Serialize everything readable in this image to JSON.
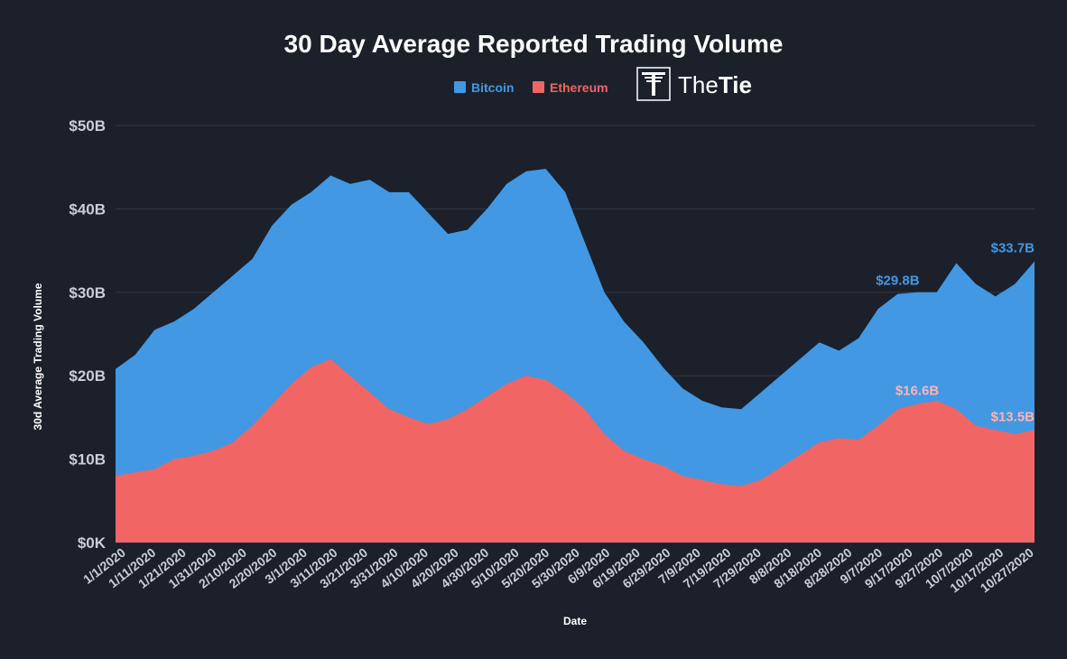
{
  "chart_data": {
    "type": "area",
    "stacked": false,
    "title": "30 Day Average Reported Trading Volume",
    "xlabel": "Date",
    "ylabel": "30d Average Trading Volume",
    "ylim": [
      0,
      50
    ],
    "y_ticks": [
      {
        "value": 0,
        "label": "$0K"
      },
      {
        "value": 10,
        "label": "$10B"
      },
      {
        "value": 20,
        "label": "$20B"
      },
      {
        "value": 30,
        "label": "$30B"
      },
      {
        "value": 40,
        "label": "$40B"
      },
      {
        "value": 50,
        "label": "$50B"
      }
    ],
    "x_tick_labels": [
      "1/1/2020",
      "1/11/2020",
      "1/21/2020",
      "1/31/2020",
      "2/10/2020",
      "2/20/2020",
      "3/1/2020",
      "3/11/2020",
      "3/21/2020",
      "3/31/2020",
      "4/10/2020",
      "4/20/2020",
      "4/30/2020",
      "5/10/2020",
      "5/20/2020",
      "5/30/2020",
      "6/9/2020",
      "6/19/2020",
      "6/29/2020",
      "7/9/2020",
      "7/19/2020",
      "7/29/2020",
      "8/8/2020",
      "8/18/2020",
      "8/28/2020",
      "9/7/2020",
      "9/17/2020",
      "9/27/2020",
      "10/7/2020",
      "10/17/2020",
      "10/27/2020"
    ],
    "legend_position": "top-center",
    "grid": true,
    "series": [
      {
        "name": "Bitcoin",
        "color": "#4298e2",
        "values": [
          20.8,
          22.5,
          25.5,
          26.5,
          28.0,
          30.0,
          32.0,
          34.0,
          38.0,
          40.5,
          42.0,
          44.0,
          43.0,
          43.5,
          42.0,
          42.0,
          39.5,
          37.0,
          37.5,
          40.0,
          43.0,
          44.5,
          44.8,
          42.0,
          36.0,
          30.0,
          26.5,
          24.0,
          21.0,
          18.5,
          17.0,
          16.2,
          16.0,
          18.0,
          20.0,
          22.0,
          24.0,
          23.0,
          24.5,
          28.0,
          29.8,
          30.0,
          30.0,
          33.5,
          31.0,
          29.5,
          31.0,
          33.7
        ]
      },
      {
        "name": "Ethereum",
        "color": "#f26565",
        "values": [
          8.0,
          8.4,
          8.8,
          10.0,
          10.4,
          11.0,
          12.0,
          14.0,
          16.5,
          19.0,
          21.0,
          22.0,
          20.0,
          18.0,
          16.0,
          15.0,
          14.2,
          14.8,
          16.0,
          17.5,
          19.0,
          20.0,
          19.5,
          18.0,
          16.0,
          13.0,
          11.0,
          10.0,
          9.2,
          8.0,
          7.5,
          7.0,
          6.8,
          7.5,
          9.0,
          10.5,
          12.0,
          12.5,
          12.3,
          14.0,
          16.0,
          16.6,
          17.0,
          16.0,
          14.0,
          13.5,
          13.0,
          13.5
        ]
      }
    ],
    "annotations": [
      {
        "series": "Bitcoin",
        "index": 40,
        "label": "$29.8B"
      },
      {
        "series": "Bitcoin",
        "index": 47,
        "label": "$33.7B"
      },
      {
        "series": "Ethereum",
        "index": 41,
        "label": "$16.6B"
      },
      {
        "series": "Ethereum",
        "index": 47,
        "label": "$13.5B"
      }
    ]
  },
  "logo": {
    "name": "TheTie",
    "part1": "The",
    "part2": "Tie",
    "icon": "tie-logo-icon"
  }
}
